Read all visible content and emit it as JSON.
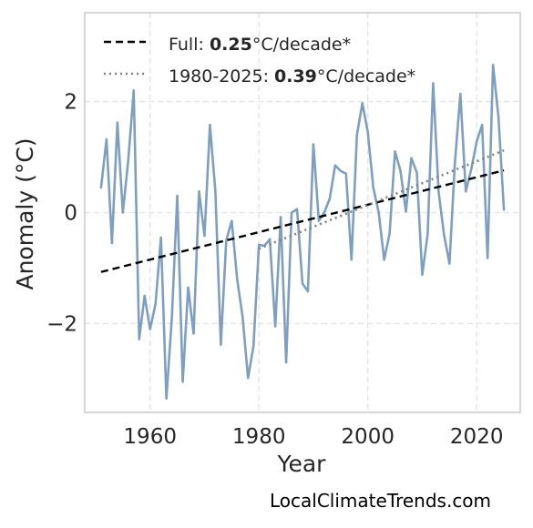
{
  "chart_data": {
    "type": "line",
    "xlabel": "Year",
    "ylabel": "Anomaly (°C)",
    "xlim": [
      1948,
      2028
    ],
    "ylim": [
      -3.6,
      3.6
    ],
    "xticks": [
      1960,
      1980,
      2000,
      2020
    ],
    "yticks": [
      -2,
      0,
      2
    ],
    "ytick_labels": [
      "−2",
      "0",
      "2"
    ],
    "grid": true,
    "legend_position": "top-left",
    "x": [
      1951,
      1952,
      1953,
      1954,
      1955,
      1956,
      1957,
      1958,
      1959,
      1960,
      1961,
      1962,
      1963,
      1964,
      1965,
      1966,
      1967,
      1968,
      1969,
      1970,
      1971,
      1972,
      1973,
      1974,
      1975,
      1976,
      1977,
      1978,
      1979,
      1980,
      1981,
      1982,
      1983,
      1984,
      1985,
      1986,
      1987,
      1988,
      1989,
      1990,
      1991,
      1992,
      1993,
      1994,
      1995,
      1996,
      1997,
      1998,
      1999,
      2000,
      2001,
      2002,
      2003,
      2004,
      2005,
      2006,
      2007,
      2008,
      2009,
      2010,
      2011,
      2012,
      2013,
      2014,
      2015,
      2016,
      2017,
      2018,
      2019,
      2020,
      2021,
      2022,
      2023,
      2024,
      2025
    ],
    "series": [
      {
        "color": "#7f9fc1",
        "values": [
          0.45,
          1.32,
          -0.55,
          1.62,
          0.0,
          0.95,
          2.2,
          -2.28,
          -1.5,
          -2.1,
          -1.65,
          -0.45,
          -3.35,
          -1.9,
          0.3,
          -3.05,
          -1.35,
          -2.18,
          0.38,
          -0.42,
          1.58,
          0.38,
          -2.38,
          -0.5,
          -0.15,
          -1.2,
          -1.88,
          -2.98,
          -2.4,
          -0.58,
          -0.6,
          -0.48,
          -2.05,
          -0.08,
          -2.7,
          0.0,
          0.06,
          -1.28,
          -1.42,
          1.23,
          -0.15,
          0.0,
          0.25,
          0.85,
          0.75,
          0.7,
          -0.85,
          1.4,
          1.97,
          1.45,
          0.45,
          0.0,
          -0.85,
          -0.38,
          1.1,
          0.75,
          0.02,
          0.98,
          0.72,
          -1.12,
          -0.38,
          2.33,
          0.38,
          -0.4,
          -0.92,
          0.9,
          2.14,
          0.38,
          0.78,
          1.28,
          1.58,
          -0.82,
          2.66,
          1.72,
          0.05
        ]
      }
    ],
    "trends": [
      {
        "style": "dashed",
        "color": "#000000",
        "x": [
          1951,
          2025
        ],
        "y": [
          -1.07,
          0.76
        ]
      },
      {
        "style": "dotted",
        "color": "#808080",
        "x": [
          1980,
          2025
        ],
        "y": [
          -0.65,
          1.12
        ]
      }
    ],
    "legend": [
      {
        "prefix": "Full: ",
        "value": "0.25",
        "suffix": "°C/decade*",
        "style": "dashed",
        "color": "#000000"
      },
      {
        "prefix": "1980-2025: ",
        "value": "0.39",
        "suffix": "°C/decade*",
        "style": "dotted",
        "color": "#808080"
      }
    ]
  },
  "credit": "LocalClimateTrends.com"
}
